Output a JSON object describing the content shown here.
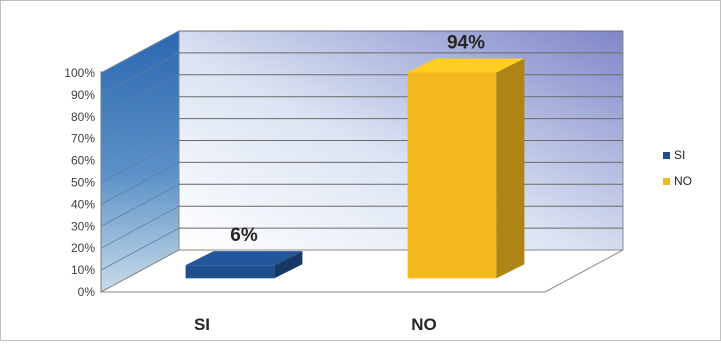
{
  "chart_data": {
    "type": "bar",
    "categories": [
      "SI",
      "NO"
    ],
    "values": [
      6,
      94
    ],
    "data_labels": [
      "6%",
      "94%"
    ],
    "ylim": [
      0,
      100
    ],
    "yticks": [
      "0%",
      "10%",
      "20%",
      "30%",
      "40%",
      "50%",
      "60%",
      "70%",
      "80%",
      "90%",
      "100%"
    ],
    "grid": true,
    "three_d": true,
    "legend": {
      "position": "right",
      "entries": [
        {
          "label": "SI",
          "color": "#1f4e8c"
        },
        {
          "label": "NO",
          "color": "#f2b81c"
        }
      ]
    },
    "colors": {
      "SI": "#1f4e8c",
      "NO": "#f2b81c"
    }
  }
}
